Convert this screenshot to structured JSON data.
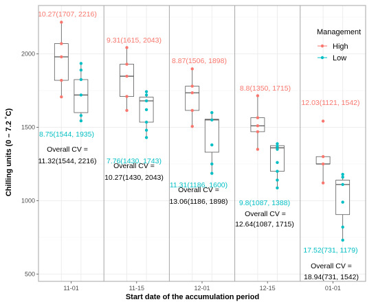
{
  "chart_data": {
    "type": "box",
    "xlabel": "Start date of the accumulation period",
    "ylabel": "Chilling units (0 – 7.2 ˚C)",
    "ylim": [
      450,
      2330
    ],
    "yticks": [
      500,
      1000,
      1500,
      2000
    ],
    "grid": true,
    "facets": [
      "11-01",
      "11-15",
      "12-01",
      "12-15",
      "01-01"
    ],
    "legend": {
      "title": "Management",
      "placement": "top-right",
      "items": [
        {
          "label": "High",
          "color": "#F8766D"
        },
        {
          "label": "Low",
          "color": "#00BFC4"
        }
      ]
    },
    "series": [
      {
        "name": "High",
        "color": "#F8766D",
        "boxes": [
          {
            "facet": "11-01",
            "min": 1707,
            "q1": 1820,
            "median": 1980,
            "q3": 2070,
            "max": 2216,
            "points": [
              1707,
              1820,
              1980,
              2070,
              2216
            ]
          },
          {
            "facet": "11-15",
            "min": 1615,
            "q1": 1710,
            "median": 1848,
            "q3": 1930,
            "max": 2043,
            "points": [
              1615,
              1710,
              1848,
              1930,
              2043
            ]
          },
          {
            "facet": "12-01",
            "min": 1506,
            "q1": 1615,
            "median": 1735,
            "q3": 1780,
            "max": 1898,
            "points": [
              1506,
              1615,
              1735,
              1780,
              1898
            ]
          },
          {
            "facet": "12-15",
            "min": 1350,
            "q1": 1470,
            "median": 1510,
            "q3": 1565,
            "max": 1715,
            "points": [
              1350,
              1470,
              1510,
              1565,
              1715
            ]
          },
          {
            "facet": "01-01",
            "min": 1121,
            "q1": 1250,
            "median": 1250,
            "q3": 1300,
            "max": 1300,
            "points": [
              1121,
              1250,
              1300,
              1542
            ]
          }
        ]
      },
      {
        "name": "Low",
        "color": "#00BFC4",
        "boxes": [
          {
            "facet": "11-01",
            "min": 1544,
            "q1": 1600,
            "median": 1720,
            "q3": 1825,
            "max": 1935,
            "points": [
              1544,
              1580,
              1720,
              1825,
              1890,
              1935
            ]
          },
          {
            "facet": "11-15",
            "min": 1430,
            "q1": 1535,
            "median": 1680,
            "q3": 1705,
            "max": 1743,
            "points": [
              1430,
              1480,
              1535,
              1620,
              1680,
              1720,
              1743
            ]
          },
          {
            "facet": "12-01",
            "min": 1186,
            "q1": 1330,
            "median": 1550,
            "q3": 1555,
            "max": 1600,
            "points": [
              1186,
              1250,
              1380,
              1550,
              1600
            ]
          },
          {
            "facet": "12-15",
            "min": 1087,
            "q1": 1200,
            "median": 1360,
            "q3": 1375,
            "max": 1388,
            "points": [
              1087,
              1140,
              1200,
              1260,
              1350,
              1370,
              1388
            ]
          },
          {
            "facet": "01-01",
            "min": 731,
            "q1": 905,
            "median": 1110,
            "q3": 1140,
            "max": 1179,
            "points": [
              731,
              820,
              990,
              1110,
              1160,
              1179
            ]
          }
        ]
      }
    ],
    "annotations": [
      {
        "facet": "11-01",
        "high": "10.27(1707, 2216)",
        "low": "8.75(1544, 1935)",
        "overall_line1": "Overall CV =",
        "overall_line2": "11.32(1544, 2216)"
      },
      {
        "facet": "11-15",
        "high": "9.31(1615, 2043)",
        "low": "7.76(1430, 1743)",
        "overall_line1": "Overall CV =",
        "overall_line2": "10.27(1430, 2043)"
      },
      {
        "facet": "12-01",
        "high": "8.87(1506, 1898)",
        "low": "11.31(1186, 1600)",
        "overall_line1": "Overall CV =",
        "overall_line2": "13.06(1186, 1898)"
      },
      {
        "facet": "12-15",
        "high": "8.8(1350, 1715)",
        "low": "9.8(1087, 1388)",
        "overall_line1": "Overall CV =",
        "overall_line2": "12.64(1087, 1715)"
      },
      {
        "facet": "01-01",
        "high": "12.03(1121, 1542)",
        "low": "17.52(731, 1179)",
        "overall_line1": "Overall CV =",
        "overall_line2": "18.94(731, 1542)"
      }
    ]
  }
}
